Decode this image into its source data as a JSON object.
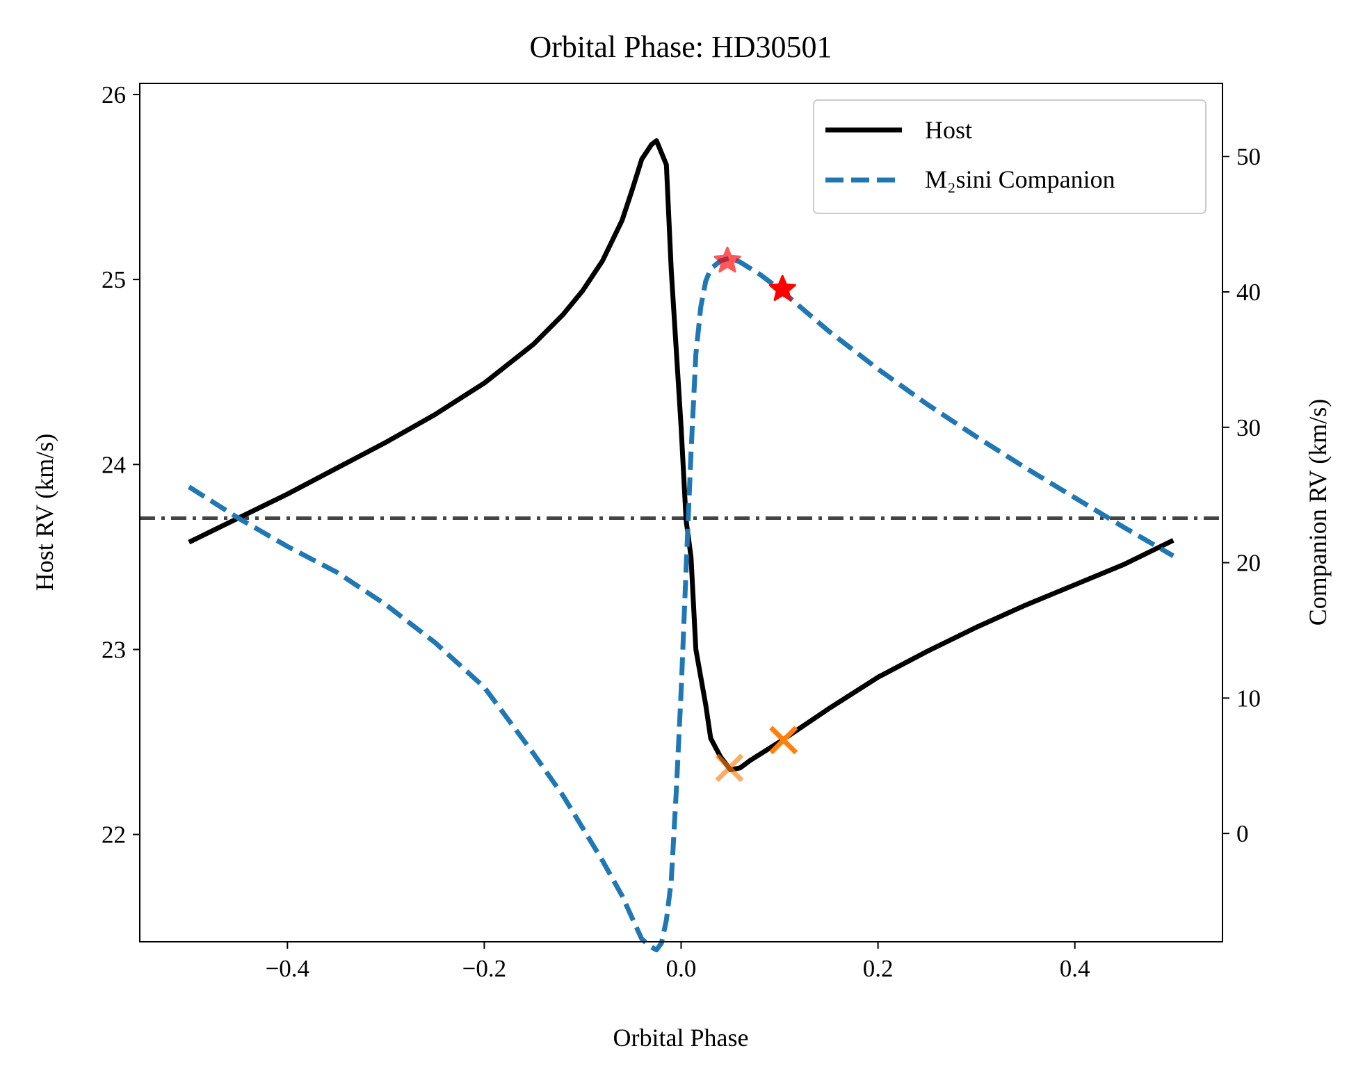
{
  "chart_data": {
    "type": "line",
    "title": "Orbital Phase: HD30501",
    "xlabel": "Orbital Phase",
    "ylabel": "Host RV (km/s)",
    "y2label": "Companion RV (km/s)",
    "xlim": [
      -0.55,
      0.55
    ],
    "ylim": [
      21.42,
      26.06
    ],
    "y2lim": [
      -8.0,
      55.4
    ],
    "x_ticks": [
      -0.4,
      -0.2,
      0.0,
      0.2,
      0.4
    ],
    "x_tick_labels": [
      "−0.4",
      "−0.2",
      "0.0",
      "0.2",
      "0.4"
    ],
    "y_ticks": [
      22,
      23,
      24,
      25,
      26
    ],
    "y_tick_labels": [
      "22",
      "23",
      "24",
      "25",
      "26"
    ],
    "y2_ticks": [
      0,
      10,
      20,
      30,
      40,
      50
    ],
    "y2_tick_labels": [
      "0",
      "10",
      "20",
      "30",
      "40",
      "50"
    ],
    "grid": false,
    "legend_position": "top-right",
    "series": [
      {
        "name": "Host",
        "axis": "left",
        "color": "#000000",
        "style": "solid",
        "x": [
          -0.5,
          -0.45,
          -0.4,
          -0.35,
          -0.3,
          -0.25,
          -0.2,
          -0.15,
          -0.12,
          -0.1,
          -0.08,
          -0.06,
          -0.05,
          -0.04,
          -0.03,
          -0.025,
          -0.015,
          -0.01,
          0.0,
          0.005,
          0.01,
          0.015,
          0.02,
          0.025,
          0.03,
          0.04,
          0.05,
          0.06,
          0.07,
          0.1,
          0.15,
          0.2,
          0.25,
          0.3,
          0.35,
          0.4,
          0.45,
          0.5
        ],
        "values": [
          23.58,
          23.71,
          23.84,
          23.98,
          24.12,
          24.27,
          24.44,
          24.65,
          24.81,
          24.94,
          25.1,
          25.32,
          25.48,
          25.65,
          25.73,
          25.75,
          25.62,
          25.05,
          24.2,
          23.7,
          23.5,
          23.0,
          22.85,
          22.7,
          22.52,
          22.42,
          22.35,
          22.36,
          22.4,
          22.5,
          22.68,
          22.85,
          22.99,
          23.12,
          23.24,
          23.35,
          23.46,
          23.59
        ]
      },
      {
        "name": "M₂sini Companion",
        "axis": "right",
        "color": "#1f77b4",
        "style": "dashed",
        "x": [
          -0.5,
          -0.45,
          -0.4,
          -0.35,
          -0.3,
          -0.25,
          -0.2,
          -0.15,
          -0.12,
          -0.1,
          -0.08,
          -0.06,
          -0.05,
          -0.04,
          -0.03,
          -0.025,
          -0.02,
          -0.015,
          -0.01,
          -0.005,
          0.0,
          0.005,
          0.01,
          0.015,
          0.02,
          0.025,
          0.03,
          0.04,
          0.05,
          0.06,
          0.08,
          0.1,
          0.15,
          0.2,
          0.25,
          0.3,
          0.35,
          0.4,
          0.45,
          0.5
        ],
        "values": [
          25.6,
          23.3,
          21.2,
          19.3,
          16.9,
          14.1,
          10.8,
          5.9,
          2.8,
          0.4,
          -2.0,
          -4.6,
          -6.2,
          -7.8,
          -8.4,
          -8.6,
          -8.1,
          -6.4,
          -3.5,
          3.0,
          10.5,
          19.5,
          28.1,
          35.4,
          38.9,
          40.8,
          41.7,
          42.3,
          42.5,
          42.2,
          41.3,
          40.2,
          37.1,
          34.3,
          31.7,
          29.3,
          27.0,
          24.8,
          22.6,
          20.5
        ]
      },
      {
        "name": "",
        "axis": "left",
        "type": "hline",
        "color": "#444444",
        "style": "dashdot",
        "values": [
          23.71
        ]
      }
    ],
    "markers": [
      {
        "axis": "left",
        "symbol": "x",
        "color": "#ff7f0e",
        "opacity": 0.65,
        "x": 0.049,
        "y": 22.36
      },
      {
        "axis": "left",
        "symbol": "x",
        "color": "#ff7f0e",
        "opacity": 1.0,
        "x": 0.104,
        "y": 22.51
      },
      {
        "axis": "right",
        "symbol": "star",
        "color": "#ff0000",
        "opacity": 0.65,
        "x": 0.047,
        "y": 42.3
      },
      {
        "axis": "right",
        "symbol": "star",
        "color": "#ff0000",
        "opacity": 1.0,
        "x": 0.103,
        "y": 40.2
      }
    ],
    "legend": {
      "entries": [
        "Host",
        "M₂sini Companion"
      ]
    }
  }
}
